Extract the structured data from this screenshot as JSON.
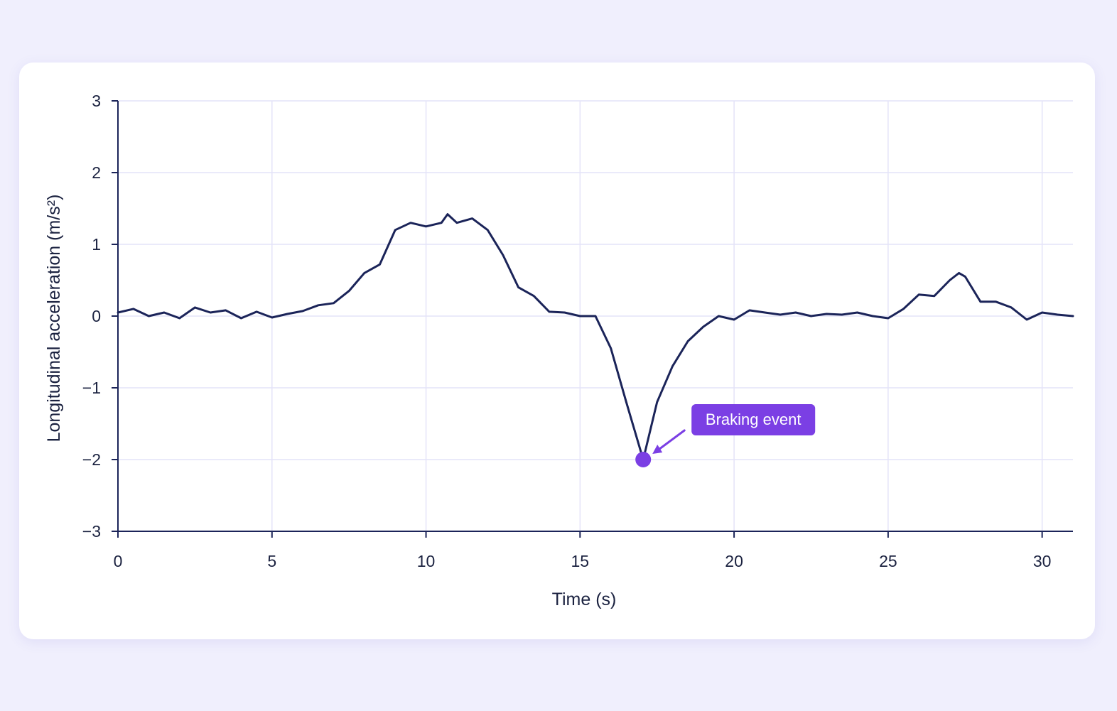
{
  "chart_data": {
    "type": "line",
    "xlabel": "Time (s)",
    "ylabel": "Longitudinal acceleration (m/s²)",
    "xlim": [
      0,
      31
    ],
    "ylim": [
      -3,
      3
    ],
    "xticks": [
      0,
      5,
      10,
      15,
      20,
      25,
      30
    ],
    "xtick_labels": [
      "0",
      "5",
      "10",
      "15",
      "20",
      "25",
      "30"
    ],
    "yticks": [
      3,
      2,
      1,
      0,
      -1,
      -2,
      -3
    ],
    "ytick_labels": [
      "3",
      "2",
      "1",
      "0",
      "−1",
      "−2",
      "−3"
    ],
    "grid": true,
    "series": [
      {
        "color": "#1b2459",
        "x": [
          0,
          0.5,
          1,
          1.5,
          2,
          2.5,
          3,
          3.5,
          4,
          4.5,
          5,
          5.5,
          6,
          6.5,
          7,
          7.5,
          8,
          8.5,
          9,
          9.5,
          10,
          10.5,
          10.7,
          11,
          11.5,
          12,
          12.5,
          13,
          13.5,
          14,
          14.5,
          15,
          15.5,
          16,
          16.5,
          17.05,
          17.5,
          18,
          18.5,
          19,
          19.5,
          20,
          20.5,
          21,
          21.5,
          22,
          22.5,
          23,
          23.5,
          24,
          24.5,
          25,
          25.5,
          26,
          26.5,
          27,
          27.3,
          27.5,
          28,
          28.5,
          29,
          29.5,
          30,
          30.5,
          31
        ],
        "y": [
          0.05,
          0.1,
          0.0,
          0.05,
          -0.03,
          0.12,
          0.05,
          0.08,
          -0.03,
          0.06,
          -0.02,
          0.03,
          0.07,
          0.15,
          0.18,
          0.35,
          0.6,
          0.72,
          1.2,
          1.3,
          1.25,
          1.3,
          1.42,
          1.3,
          1.36,
          1.2,
          0.85,
          0.4,
          0.28,
          0.06,
          0.05,
          0.0,
          0.0,
          -0.45,
          -1.2,
          -2.0,
          -1.2,
          -0.7,
          -0.35,
          -0.15,
          0.0,
          -0.05,
          0.08,
          0.05,
          0.02,
          0.05,
          0.0,
          0.03,
          0.02,
          0.05,
          0.0,
          -0.03,
          0.1,
          0.3,
          0.28,
          0.5,
          0.6,
          0.55,
          0.2,
          0.2,
          0.12,
          -0.05,
          0.05,
          0.02,
          0.0
        ]
      }
    ],
    "annotations": [
      {
        "text": "Braking event",
        "x": 17.05,
        "y": -2.0,
        "color": "#7b3fe4"
      }
    ]
  }
}
